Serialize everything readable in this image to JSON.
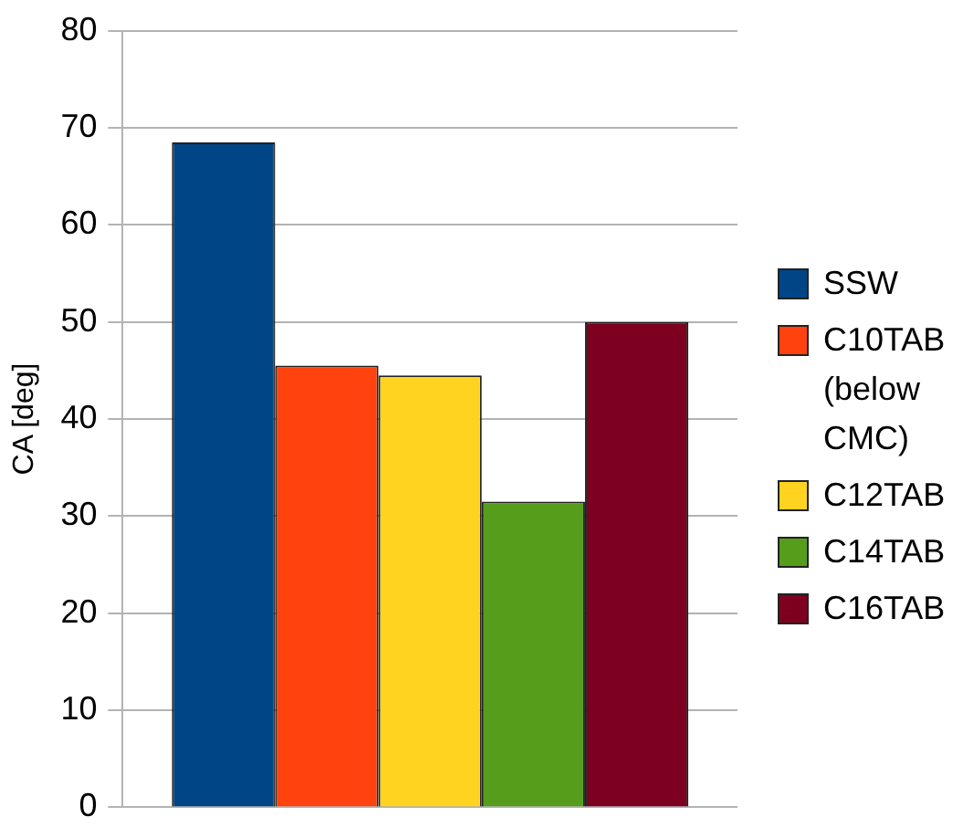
{
  "chart_data": {
    "type": "bar",
    "ylabel": "CA [deg]",
    "categories": [
      null
    ],
    "ylim": [
      0,
      80
    ],
    "yticks": [
      0,
      10,
      20,
      30,
      40,
      50,
      60,
      70,
      80
    ],
    "grid": "y",
    "legend": "right",
    "series": [
      {
        "name": "SSW",
        "color": "#004586",
        "values": [
          68.5
        ]
      },
      {
        "name": "C10TAB (below CMC)",
        "color": "#ff420e",
        "values": [
          45.5
        ]
      },
      {
        "name": "C12TAB",
        "color": "#ffd320",
        "values": [
          44.5
        ]
      },
      {
        "name": "C14TAB",
        "color": "#579d1c",
        "values": [
          31.5
        ]
      },
      {
        "name": "C16TAB",
        "color": "#7e0021",
        "values": [
          50
        ]
      }
    ]
  }
}
